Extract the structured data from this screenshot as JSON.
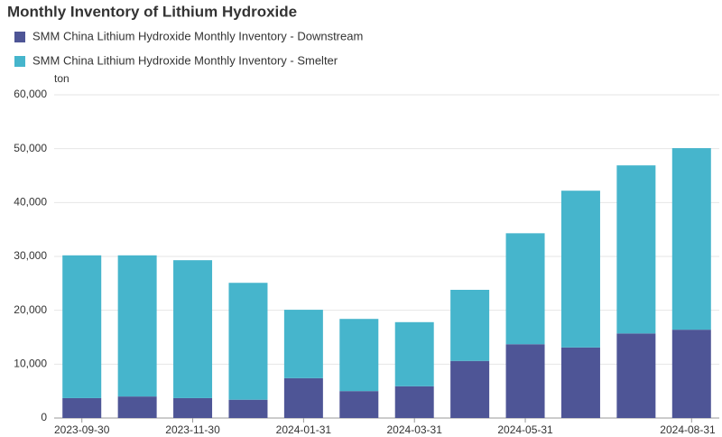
{
  "chart_data": {
    "type": "stacked_bar",
    "title": "Monthly Inventory of Lithium Hydroxide",
    "y_unit": "ton",
    "categories": [
      "2023-09-30",
      null,
      "2023-11-30",
      null,
      "2024-01-31",
      null,
      "2024-03-31",
      null,
      "2024-05-31",
      null,
      null,
      "2024-08-31"
    ],
    "series": [
      {
        "name": "SMM China Lithium Hydroxide Monthly Inventory - Downstream",
        "color": "#4e5596",
        "values": [
          3700,
          4000,
          3700,
          3400,
          7400,
          5000,
          5900,
          10600,
          13700,
          13100,
          15700,
          16400
        ]
      },
      {
        "name": "SMM China Lithium Hydroxide Monthly Inventory - Smelter",
        "color": "#46b5cc",
        "values": [
          26500,
          26200,
          25600,
          21700,
          12700,
          13400,
          11900,
          13200,
          20600,
          29100,
          31200,
          33700
        ]
      }
    ],
    "ylim": [
      0,
      60000
    ],
    "yticks": [
      0,
      {
        "value": 10000,
        "label": "10,000"
      },
      {
        "value": 20000,
        "label": "20,000"
      },
      {
        "value": 30000,
        "label": "30,000"
      },
      {
        "value": 40000,
        "label": "40,000"
      },
      {
        "value": 50000,
        "label": "50,000"
      },
      {
        "value": 60000,
        "label": "60,000"
      }
    ],
    "grid": true
  }
}
